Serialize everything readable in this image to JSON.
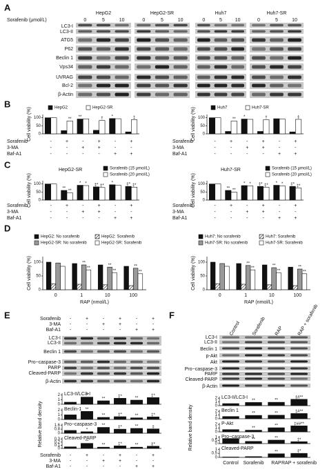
{
  "figure": {
    "A": {
      "label": "A",
      "dose_title": "Sorafenib (μmol/L)",
      "groups": [
        {
          "name": "HepG2",
          "doses": [
            "0",
            "5",
            "10"
          ]
        },
        {
          "name": "HepG2-SR",
          "doses": [
            "0",
            "5",
            "10"
          ]
        },
        {
          "name": "Huh7",
          "doses": [
            "0",
            "5",
            "10"
          ]
        },
        {
          "name": "Huh7-SR",
          "doses": [
            "0",
            "5",
            "10"
          ]
        }
      ],
      "rows": [
        "LC3-I",
        "LC3-II",
        "ATG5",
        "P62",
        "Beclin 1",
        "Vps34",
        "UVRAG",
        "Bcl-2",
        "β-Actin"
      ]
    },
    "B": {
      "label": "B"
    },
    "C": {
      "label": "C"
    },
    "D": {
      "label": "D"
    },
    "E": {
      "label": "E",
      "treatments": [
        {
          "name": "Sorafenib",
          "marks": [
            "-",
            "+",
            "-",
            "+",
            "-",
            "+"
          ]
        },
        {
          "name": "3-MA",
          "marks": [
            "-",
            "-",
            "+",
            "+",
            "-",
            "-"
          ]
        },
        {
          "name": "Baf-A1",
          "marks": [
            "-",
            "-",
            "-",
            "-",
            "+",
            "+"
          ]
        }
      ],
      "rows": [
        "LC3-I",
        "LC3-II",
        "Beclin 1",
        "Pro−caspase-3",
        "PARP",
        "Cleaved-PARP",
        "β-Actin"
      ],
      "ylabel": "Relative band density"
    },
    "F": {
      "label": "F",
      "columns": [
        "Control",
        "Sorafenib",
        "RAP",
        "RAP + sorafenib"
      ],
      "rows": [
        "LC3-I",
        "LC3-II",
        "Beclin 1",
        "p-Akt",
        "Akt",
        "Pro−caspase-3",
        "PARP",
        "Cleaved-PARP",
        "β-Actin"
      ],
      "ylabel": "Relative band density"
    }
  },
  "chart_data": [
    {
      "type": "bar",
      "ylabel": "Cell viability (%)",
      "ylim": [
        0,
        120
      ],
      "yticks": [
        0,
        50,
        100
      ],
      "series": [
        {
          "name": "HepG2",
          "color": "#111111",
          "values": [
            100,
            20,
            92,
            22,
            95,
            12
          ],
          "annotations": [
            null,
            null,
            "**",
            null,
            "*",
            null
          ]
        },
        {
          "name": "HepG2-SR",
          "color": "#ffffff",
          "values": [
            100,
            80,
            93,
            83,
            94,
            88
          ],
          "annotations": [
            null,
            "**",
            null,
            "†",
            null,
            "‡"
          ]
        }
      ],
      "treatments": [
        {
          "name": "Sorafenib",
          "marks": [
            "-",
            "+",
            "-",
            "+",
            "-",
            "+"
          ]
        },
        {
          "name": "3-MA",
          "marks": [
            "-",
            "-",
            "+",
            "+",
            "-",
            "-"
          ]
        },
        {
          "name": "Baf-A1",
          "marks": [
            "-",
            "-",
            "-",
            "-",
            "+",
            "+"
          ]
        }
      ]
    },
    {
      "type": "bar",
      "ylabel": "Cell viability (%)",
      "ylim": [
        0,
        120
      ],
      "yticks": [
        0,
        50,
        100
      ],
      "series": [
        {
          "name": "Huh7",
          "color": "#111111",
          "values": [
            100,
            15,
            92,
            15,
            94,
            12
          ],
          "annotations": [
            null,
            null,
            "*",
            null,
            null,
            null
          ]
        },
        {
          "name": "Huh7-SR",
          "color": "#ffffff",
          "values": [
            100,
            80,
            90,
            88,
            92,
            90
          ],
          "annotations": [
            null,
            "**",
            null,
            "†",
            null,
            "‡"
          ]
        }
      ],
      "treatments": [
        {
          "name": "Sorafenib",
          "marks": [
            "-",
            "+",
            "-",
            "+",
            "-",
            "+"
          ]
        },
        {
          "name": "3-MA",
          "marks": [
            "-",
            "-",
            "+",
            "+",
            "-",
            "-"
          ]
        },
        {
          "name": "Baf-A1",
          "marks": [
            "-",
            "-",
            "-",
            "-",
            "+",
            "+"
          ]
        }
      ]
    },
    {
      "type": "bar",
      "title": "HepG2-SR",
      "ylabel": "Cell viability (%)",
      "ylim": [
        0,
        120
      ],
      "yticks": [
        0,
        50,
        100
      ],
      "series": [
        {
          "name": "Sorafenib (15 μmol/L)",
          "color": "#111111",
          "values": [
            100,
            60,
            92,
            82,
            95,
            85
          ],
          "annotations": [
            null,
            "**",
            "*",
            "‡*",
            "*",
            "‡*"
          ]
        },
        {
          "name": "Sorafenib (20 μmol/L)",
          "color": "#ffffff",
          "values": [
            100,
            45,
            90,
            78,
            92,
            80
          ],
          "annotations": [
            null,
            "**",
            "*",
            "‡*",
            null,
            "‡*"
          ]
        }
      ],
      "treatments": [
        {
          "name": "Sorafenib",
          "marks": [
            "-",
            "+",
            "-",
            "+",
            "-",
            "+"
          ]
        },
        {
          "name": "3-MA",
          "marks": [
            "-",
            "-",
            "+",
            "+",
            "-",
            "-"
          ]
        },
        {
          "name": "Baf-A1",
          "marks": [
            "-",
            "-",
            "-",
            "-",
            "+",
            "+"
          ]
        }
      ]
    },
    {
      "type": "bar",
      "title": "Huh7-SR",
      "ylabel": "Cell viability (%)",
      "ylim": [
        0,
        120
      ],
      "yticks": [
        0,
        50,
        100
      ],
      "series": [
        {
          "name": "Sorafenib (15 μmol/L)",
          "color": "#111111",
          "values": [
            100,
            60,
            90,
            85,
            92,
            85
          ],
          "annotations": [
            null,
            "**",
            "*",
            "‡*",
            "*",
            "‡*"
          ]
        },
        {
          "name": "Sorafenib (20 μmol/L)",
          "color": "#ffffff",
          "values": [
            100,
            50,
            88,
            80,
            88,
            75
          ],
          "annotations": [
            null,
            "**",
            "*",
            "‡*",
            "*",
            "‡*"
          ]
        }
      ],
      "treatments": [
        {
          "name": "Sorafenib",
          "marks": [
            "-",
            "+",
            "-",
            "+",
            "-",
            "+"
          ]
        },
        {
          "name": "3-MA",
          "marks": [
            "-",
            "-",
            "+",
            "+",
            "-",
            "-"
          ]
        },
        {
          "name": "Baf-A1",
          "marks": [
            "-",
            "-",
            "-",
            "-",
            "+",
            "+"
          ]
        }
      ]
    },
    {
      "type": "bar",
      "ylabel": "Cell viability (%)",
      "xlabel": "RAP (nmol/L)",
      "ylim": [
        0,
        120
      ],
      "yticks": [
        0,
        50,
        100
      ],
      "categories": [
        "0",
        "1",
        "10",
        "100"
      ],
      "series": [
        {
          "name": "HepG2: No sorafenib",
          "color": "#111111",
          "values": [
            100,
            95,
            90,
            85
          ]
        },
        {
          "name": "HepG2: Sorafenib",
          "color": "#ffffff",
          "pattern": "hatch",
          "values": [
            22,
            20,
            18,
            15
          ]
        },
        {
          "name": "HepG2-SR: No sorafenib",
          "color": "#999999",
          "values": [
            97,
            90,
            82,
            78
          ],
          "annotations": [
            null,
            "**",
            "**",
            "**"
          ]
        },
        {
          "name": "HepG2-SR: Sorafenib",
          "color": "#ffffff",
          "values": [
            85,
            72,
            62,
            58
          ],
          "annotations": [
            null,
            "**",
            "**",
            "**"
          ]
        }
      ]
    },
    {
      "type": "bar",
      "ylabel": "Cell viability (%)",
      "xlabel": "RAP (nmol/L)",
      "ylim": [
        0,
        120
      ],
      "yticks": [
        0,
        50,
        100
      ],
      "categories": [
        "0",
        "1",
        "10",
        "100"
      ],
      "series": [
        {
          "name": "Huh7: No sorafenib",
          "color": "#111111",
          "values": [
            100,
            95,
            90,
            82
          ]
        },
        {
          "name": "Huh7: Sorafenib",
          "color": "#ffffff",
          "pattern": "hatch",
          "values": [
            22,
            20,
            18,
            15
          ]
        },
        {
          "name": "Huh7-SR: No sorafenib",
          "color": "#999999",
          "values": [
            95,
            88,
            80,
            75
          ],
          "annotations": [
            null,
            "**",
            "**",
            "**"
          ]
        },
        {
          "name": "Huh7-SR: Sorafenib",
          "color": "#ffffff",
          "values": [
            85,
            72,
            62,
            58
          ],
          "annotations": [
            null,
            "**",
            "**",
            "**"
          ]
        }
      ]
    },
    {
      "type": "bar",
      "title": "LC3-II/LC3-I",
      "ylim": [
        0,
        2.4
      ],
      "yticks": [
        0,
        1,
        2
      ],
      "series": [
        {
          "color": "#111111",
          "values": [
            0.45,
            1.55,
            0.75,
            1.3,
            0.9,
            1.45
          ],
          "annotations": [
            null,
            "**",
            "**",
            "‡*",
            "**",
            "‡*"
          ]
        }
      ]
    },
    {
      "type": "bar",
      "title": "Beclin-1",
      "ylim": [
        0,
        2.4
      ],
      "yticks": [
        0,
        1,
        2
      ],
      "series": [
        {
          "color": "#111111",
          "values": [
            1.0,
            1.75,
            0.45,
            0.6,
            0.35,
            0.55
          ],
          "annotations": [
            null,
            "**",
            "**",
            "‡*",
            "**",
            "‡*"
          ]
        }
      ]
    },
    {
      "type": "bar",
      "title": "Pro−caspase-3",
      "ylim": [
        0,
        1.9
      ],
      "yticks": [
        0,
        0.8,
        1.6
      ],
      "series": [
        {
          "color": "#111111",
          "values": [
            0.55,
            0.3,
            1.15,
            0.8,
            0.95,
            0.85
          ],
          "annotations": [
            null,
            "*",
            "**",
            "‡*",
            "**",
            "‡"
          ]
        }
      ]
    },
    {
      "type": "bar",
      "title": "Cleaved-PARP",
      "ylim": [
        0,
        0.35
      ],
      "yticks": [
        0,
        0.1,
        0.2,
        0.3
      ],
      "series": [
        {
          "color": "#111111",
          "values": [
            0.05,
            0.16,
            0.04,
            0.08,
            0.04,
            0.07
          ],
          "annotations": [
            null,
            "**",
            "**",
            "‡*",
            "**",
            "‡*"
          ]
        }
      ],
      "treatments": [
        {
          "name": "Sorafenib",
          "marks": [
            "-",
            "+",
            "-",
            "+",
            "-",
            "+"
          ]
        },
        {
          "name": "3-MA",
          "marks": [
            "-",
            "-",
            "+",
            "+",
            "-",
            "-"
          ]
        },
        {
          "name": "Baf-A1",
          "marks": [
            "-",
            "-",
            "-",
            "-",
            "+",
            "+"
          ]
        }
      ]
    },
    {
      "type": "bar",
      "title": "LC3-II/LC3-I",
      "ylim": [
        0,
        2.4
      ],
      "yticks": [
        0,
        1,
        2
      ],
      "series": [
        {
          "color": "#111111",
          "values": [
            0.55,
            0.85,
            0.9,
            1.7
          ],
          "annotations": [
            null,
            "**",
            "**",
            "‡#**"
          ]
        }
      ]
    },
    {
      "type": "bar",
      "title": "Beclin 1",
      "ylim": [
        0,
        2.4
      ],
      "yticks": [
        0,
        1,
        2
      ],
      "series": [
        {
          "color": "#111111",
          "values": [
            0.6,
            0.9,
            0.95,
            1.4
          ],
          "annotations": [
            null,
            "**",
            "**",
            "‡#**"
          ]
        }
      ]
    },
    {
      "type": "bar",
      "title": "P-Akt",
      "ylim": [
        0,
        2.4
      ],
      "yticks": [
        0,
        1,
        2
      ],
      "series": [
        {
          "color": "#111111",
          "values": [
            0.6,
            0.45,
            1.1,
            1.6
          ],
          "annotations": [
            null,
            "**",
            "**",
            "‡##**"
          ]
        }
      ]
    },
    {
      "type": "bar",
      "title": "Pro−caspase-3",
      "ylim": [
        0,
        1.2
      ],
      "yticks": [
        0,
        0.5,
        1
      ],
      "series": [
        {
          "color": "#111111",
          "values": [
            0.8,
            0.35,
            0.55,
            0.3
          ],
          "annotations": [
            null,
            "**",
            "**",
            "‡*"
          ]
        }
      ]
    },
    {
      "type": "bar",
      "title": "Cleaved-PARP",
      "ylim": [
        0,
        1.2
      ],
      "yticks": [
        0,
        0.5,
        1
      ],
      "categories": [
        "Control",
        "Sorafenib",
        "RAP",
        "RAP + sorafenib"
      ],
      "series": [
        {
          "color": "#111111",
          "values": [
            0.05,
            0.1,
            0.45,
            0.5
          ],
          "annotations": [
            null,
            null,
            "**",
            "‡*"
          ]
        }
      ]
    }
  ]
}
